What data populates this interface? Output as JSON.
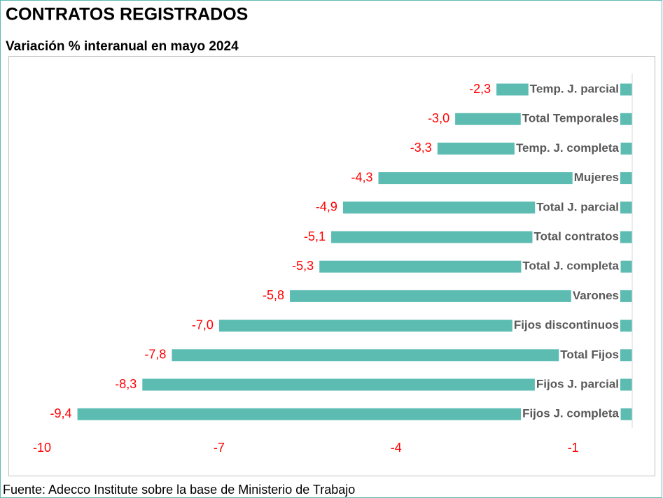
{
  "chart_data": {
    "type": "barh",
    "title": "CONTRATOS REGISTRADOS",
    "subtitle": "Variación % interanual en mayo 2024",
    "source": "Fuente: Adecco Institute sobre la base de Ministerio de Trabajo",
    "categories": [
      "Temp. J. parcial",
      "Total Temporales",
      "Temp. J. completa",
      "Mujeres",
      "Total J. parcial",
      "Total contratos",
      "Total J. completa",
      "Varones",
      "Fijos discontinuos",
      "Total Fijos",
      "Fijos J. parcial",
      "Fijos J. completa"
    ],
    "values": [
      -2.3,
      -3.0,
      -3.3,
      -4.3,
      -4.9,
      -5.1,
      -5.3,
      -5.8,
      -7.0,
      -7.8,
      -8.3,
      -9.4
    ],
    "value_labels": [
      "-2,3",
      "-3,0",
      "-3,3",
      "-4,3",
      "-4,9",
      "-5,1",
      "-5,3",
      "-5,8",
      "-7,0",
      "-7,8",
      "-8,3",
      "-9,4"
    ],
    "color": "#5dbcb2",
    "xlim": [
      -10,
      0
    ],
    "xticks": [
      -10,
      -7,
      -4,
      -1
    ]
  }
}
